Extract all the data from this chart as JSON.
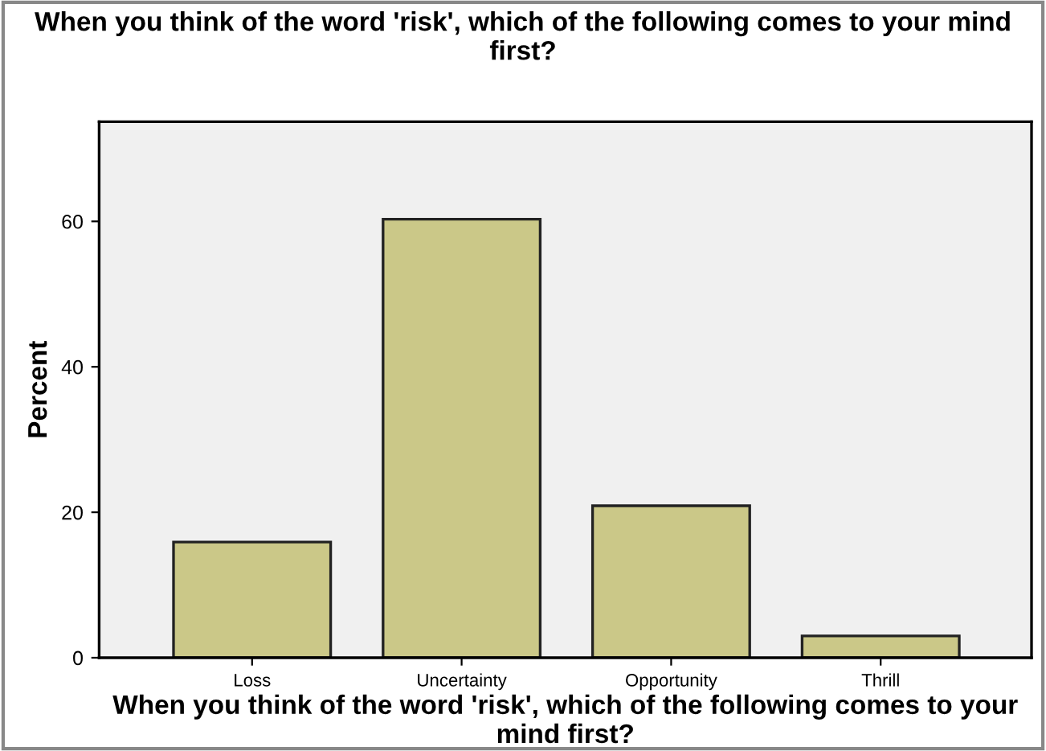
{
  "chart_data": {
    "type": "bar",
    "title": "When you think of the word 'risk', which of the following comes to your mind first?",
    "xlabel": "When you think of the word 'risk', which of the following comes to your mind first?",
    "ylabel": "Percent",
    "categories": [
      "Loss",
      "Uncertainty",
      "Opportunity",
      "Thrill"
    ],
    "values": [
      15.9,
      60.3,
      20.9,
      3.0
    ],
    "color": "#cbc888",
    "ylim": [
      0,
      73.7
    ],
    "yticks": [
      0,
      20,
      40,
      60
    ],
    "grid": false
  }
}
